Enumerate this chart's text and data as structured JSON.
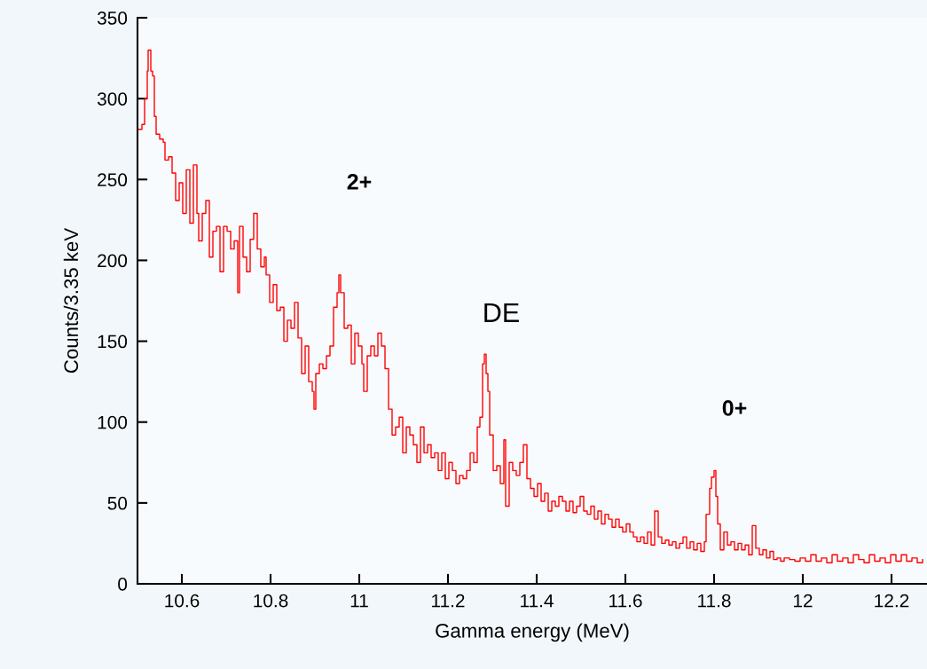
{
  "chart_data": {
    "type": "step",
    "xlabel": "Gamma energy (MeV)",
    "ylabel": "Counts/3.35 keV",
    "xlim": [
      10.5,
      12.28
    ],
    "xticks": [
      10.6,
      10.8,
      11,
      11.2,
      11.4,
      11.6,
      11.8,
      12,
      12.2
    ],
    "ylim": [
      0,
      350
    ],
    "yticks": [
      0,
      50,
      100,
      150,
      200,
      250,
      300,
      350
    ],
    "grid": false,
    "legend": false,
    "annotations": [
      "2+",
      "DE",
      "0+"
    ],
    "series": [
      {
        "color": "#ff0000",
        "x": [
          10.5,
          10.51,
          10.516,
          10.522,
          10.524,
          10.53,
          10.534,
          10.538,
          10.542,
          10.55,
          10.558,
          10.562,
          10.57,
          10.578,
          10.586,
          10.594,
          10.602,
          10.61,
          10.618,
          10.626,
          10.634,
          10.638,
          10.646,
          10.654,
          10.662,
          10.67,
          10.678,
          10.686,
          10.694,
          10.702,
          10.71,
          10.718,
          10.726,
          10.73,
          10.738,
          10.746,
          10.754,
          10.762,
          10.77,
          10.778,
          10.786,
          10.79,
          10.798,
          10.806,
          10.814,
          10.822,
          10.83,
          10.838,
          10.846,
          10.854,
          10.862,
          10.87,
          10.878,
          10.886,
          10.894,
          10.898,
          10.902,
          10.91,
          10.918,
          10.926,
          10.934,
          10.942,
          10.95,
          10.954,
          10.958,
          10.966,
          10.974,
          10.982,
          10.99,
          10.998,
          11.006,
          11.01,
          11.018,
          11.026,
          11.034,
          11.042,
          11.05,
          11.058,
          11.066,
          11.074,
          11.082,
          11.09,
          11.098,
          11.106,
          11.114,
          11.122,
          11.13,
          11.138,
          11.146,
          11.154,
          11.162,
          11.17,
          11.178,
          11.186,
          11.194,
          11.202,
          11.21,
          11.218,
          11.226,
          11.234,
          11.242,
          11.25,
          11.258,
          11.266,
          11.272,
          11.278,
          11.282,
          11.286,
          11.29,
          11.294,
          11.302,
          11.31,
          11.318,
          11.326,
          11.33,
          11.338,
          11.346,
          11.354,
          11.362,
          11.37,
          11.378,
          11.386,
          11.394,
          11.402,
          11.41,
          11.418,
          11.426,
          11.434,
          11.442,
          11.45,
          11.458,
          11.466,
          11.474,
          11.482,
          11.49,
          11.498,
          11.506,
          11.514,
          11.522,
          11.53,
          11.538,
          11.546,
          11.554,
          11.562,
          11.57,
          11.578,
          11.586,
          11.594,
          11.602,
          11.61,
          11.618,
          11.626,
          11.634,
          11.642,
          11.65,
          11.658,
          11.666,
          11.674,
          11.682,
          11.69,
          11.698,
          11.706,
          11.714,
          11.722,
          11.73,
          11.738,
          11.746,
          11.754,
          11.762,
          11.77,
          11.778,
          11.782,
          11.79,
          11.794,
          11.8,
          11.804,
          11.808,
          11.814,
          11.822,
          11.83,
          11.838,
          11.846,
          11.854,
          11.862,
          11.87,
          11.878,
          11.886,
          11.894,
          11.902,
          11.91,
          11.918,
          11.926,
          11.934,
          11.942,
          11.95,
          11.958,
          11.97,
          11.982,
          11.994,
          12.006,
          12.018,
          12.03,
          12.042,
          12.054,
          12.066,
          12.078,
          12.09,
          12.102,
          12.114,
          12.126,
          12.138,
          12.15,
          12.162,
          12.174,
          12.186,
          12.198,
          12.21,
          12.222,
          12.234,
          12.246,
          12.258,
          12.27
        ],
        "values": [
          281,
          284,
          300,
          317,
          330,
          317,
          314,
          289,
          278,
          275,
          273,
          262,
          264,
          254,
          237,
          248,
          229,
          256,
          223,
          259,
          229,
          212,
          229,
          237,
          202,
          218,
          221,
          193,
          221,
          218,
          207,
          212,
          180,
          221,
          202,
          193,
          213,
          229,
          207,
          196,
          202,
          191,
          174,
          185,
          169,
          171,
          150,
          163,
          158,
          174,
          152,
          130,
          147,
          125,
          119,
          108,
          130,
          136,
          133,
          141,
          147,
          171,
          180,
          191,
          180,
          158,
          160,
          136,
          155,
          147,
          136,
          119,
          141,
          147,
          141,
          155,
          147,
          133,
          108,
          92,
          97,
          103,
          81,
          97,
          92,
          86,
          75,
          97,
          81,
          86,
          78,
          81,
          70,
          81,
          65,
          75,
          70,
          62,
          67,
          65,
          70,
          81,
          75,
          97,
          103,
          136,
          142,
          130,
          119,
          92,
          70,
          73,
          62,
          89,
          48,
          75,
          70,
          67,
          75,
          86,
          65,
          59,
          54,
          62,
          51,
          56,
          45,
          51,
          48,
          54,
          51,
          45,
          51,
          44,
          48,
          54,
          45,
          43,
          48,
          40,
          45,
          37,
          43,
          40,
          35,
          40,
          35,
          32,
          37,
          32,
          29,
          26,
          29,
          25,
          32,
          24,
          45,
          29,
          25,
          27,
          24,
          26,
          22,
          25,
          29,
          22,
          26,
          21,
          25,
          20,
          26,
          43,
          59,
          66,
          70,
          54,
          37,
          21,
          32,
          24,
          26,
          21,
          25,
          21,
          24,
          18,
          36,
          22,
          18,
          21,
          16,
          20,
          15,
          16,
          14,
          16,
          15,
          14,
          16,
          14,
          18,
          14,
          16,
          13,
          18,
          14,
          16,
          13,
          18,
          15,
          13,
          18,
          14,
          16,
          13,
          18,
          14,
          18,
          14,
          16,
          13,
          15
        ]
      }
    ]
  }
}
